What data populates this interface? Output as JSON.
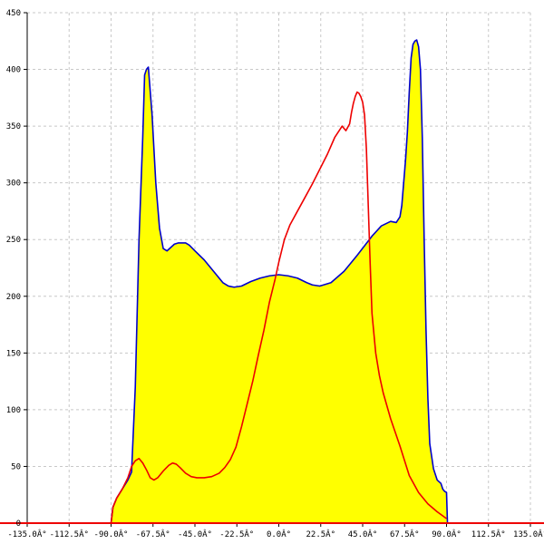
{
  "chart_data": {
    "type": "area",
    "title": "",
    "xlabel": "",
    "ylabel": "",
    "xlim": [
      -135,
      135
    ],
    "ylim": [
      0,
      450
    ],
    "grid": true,
    "legend": "none",
    "x_ticks": [
      -135,
      -112.5,
      -90,
      -67.5,
      -45,
      -22.5,
      0,
      22.5,
      45,
      67.5,
      90,
      112.5,
      135
    ],
    "x_tick_labels": [
      "-135.0Â°",
      "-112.5Â°",
      "-90.0Â°",
      "-67.5Â°",
      "-45.0Â°",
      "-22.5Â°",
      "0.0Â°",
      "22.5Â°",
      "45.0Â°",
      "67.5Â°",
      "90.0Â°",
      "112.5Â°",
      "135.0Â°"
    ],
    "y_ticks": [
      0,
      50,
      100,
      150,
      200,
      250,
      300,
      350,
      400,
      450
    ],
    "y_tick_labels": [
      "0",
      "50",
      "100",
      "150",
      "200",
      "250",
      "300",
      "350",
      "400",
      "450"
    ],
    "colors": {
      "area_fill": "#ffff00",
      "blue_line": "#0000cc",
      "red_line": "#ee0000",
      "x_axis_line": "#ee0000"
    },
    "series": [
      {
        "color": "#0000cc",
        "filled": true,
        "x": [
          -90,
          -89,
          -87,
          -84,
          -81,
          -79,
          -77,
          -75,
          -73,
          -72,
          -71,
          -70,
          -68,
          -66,
          -64,
          -62,
          -60,
          -58,
          -56,
          -54,
          -52,
          -50,
          -48,
          -45,
          -40,
          -35,
          -30,
          -27,
          -24,
          -20,
          -15,
          -10,
          -5,
          0,
          5,
          10,
          15,
          18,
          22,
          28,
          35,
          42,
          50,
          55,
          60,
          63,
          65,
          66,
          67,
          68,
          69,
          70,
          71,
          72,
          73,
          74,
          75,
          76,
          77,
          78,
          79,
          80,
          81,
          83,
          85,
          87,
          88,
          89,
          90,
          90.5
        ],
        "values": [
          0,
          14,
          22,
          30,
          38,
          45,
          120,
          250,
          340,
          395,
          400,
          402,
          360,
          300,
          260,
          242,
          240,
          243,
          246,
          247,
          247,
          247,
          245,
          240,
          232,
          222,
          212,
          209,
          208,
          209,
          213,
          216,
          218,
          219,
          218,
          216,
          212,
          210,
          209,
          212,
          222,
          236,
          253,
          262,
          266,
          265,
          270,
          280,
          300,
          320,
          345,
          380,
          410,
          422,
          425,
          426,
          420,
          400,
          340,
          250,
          170,
          110,
          70,
          48,
          38,
          35,
          30,
          28,
          27,
          0
        ]
      },
      {
        "color": "#ee0000",
        "filled": false,
        "x": [
          -90,
          -89,
          -87,
          -84,
          -81,
          -79,
          -77,
          -75,
          -73,
          -71,
          -69,
          -67,
          -65,
          -62,
          -59,
          -57,
          -55,
          -53,
          -50,
          -47,
          -44,
          -40,
          -36,
          -32,
          -29,
          -26,
          -23,
          -20,
          -17,
          -14,
          -11,
          -8,
          -5,
          -2,
          0,
          3,
          6,
          10,
          14,
          18,
          22,
          26,
          30,
          34,
          36,
          38,
          39,
          40,
          41,
          42,
          43,
          44,
          45,
          46,
          47,
          48,
          49,
          50,
          52,
          54,
          56,
          60,
          65,
          70,
          75,
          80,
          85,
          90
        ],
        "values": [
          0,
          14,
          22,
          30,
          40,
          50,
          55,
          57,
          53,
          47,
          40,
          38,
          40,
          46,
          51,
          53,
          52,
          49,
          44,
          41,
          40,
          40,
          41,
          44,
          49,
          56,
          67,
          85,
          105,
          125,
          148,
          170,
          195,
          215,
          230,
          250,
          263,
          275,
          287,
          299,
          312,
          325,
          340,
          350,
          346,
          352,
          362,
          370,
          376,
          380,
          379,
          376,
          371,
          360,
          330,
          280,
          230,
          185,
          150,
          130,
          115,
          92,
          68,
          42,
          27,
          17,
          10,
          4
        ]
      }
    ]
  }
}
